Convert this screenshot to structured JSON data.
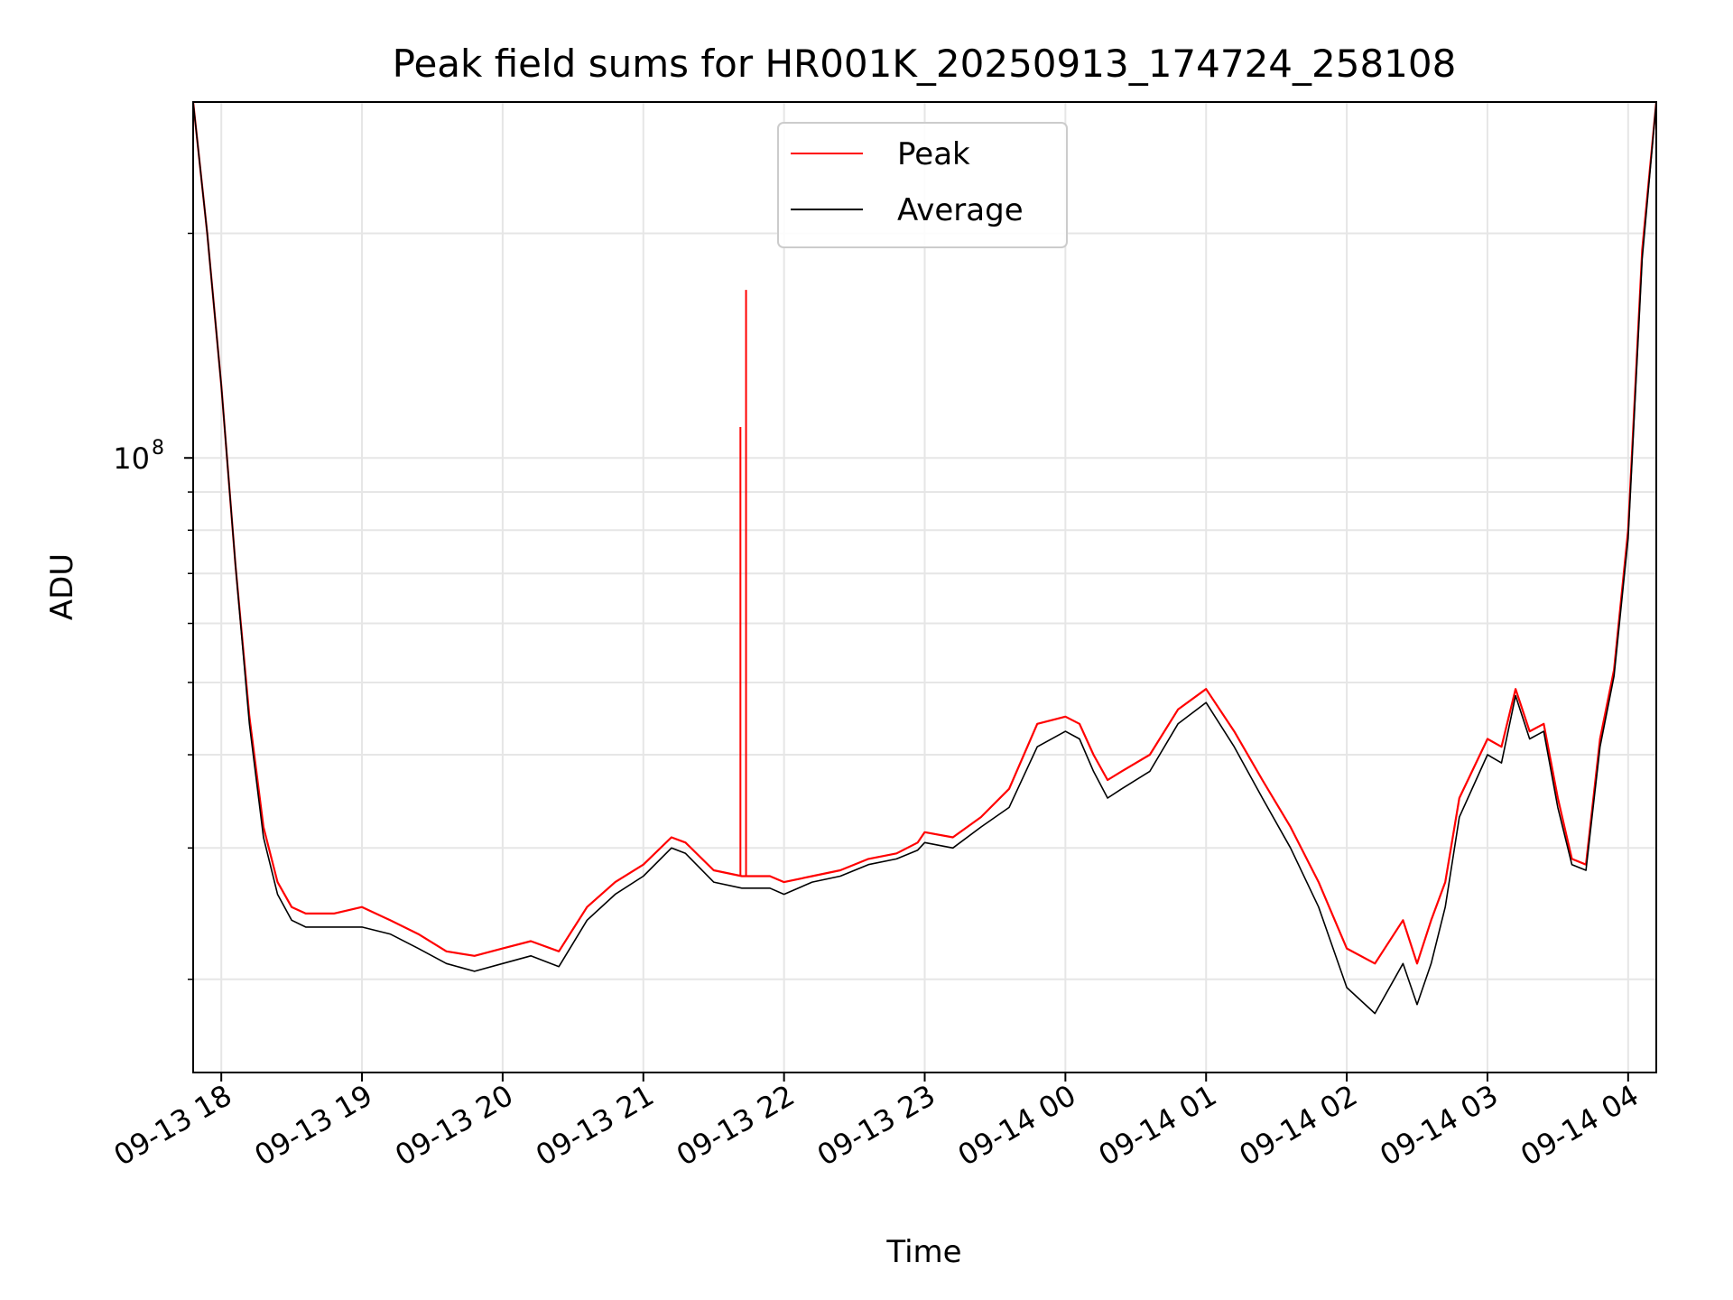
{
  "chart_data": {
    "type": "line",
    "title": "Peak field sums for HR001K_20250913_174724_258108",
    "xlabel": "Time",
    "ylabel": "ADU",
    "yscale": "log",
    "ylim": [
      15000000,
      300000000
    ],
    "xlim_hours": [
      17.8,
      28.2
    ],
    "x_unit": "hours since 2025-09-13 00:00",
    "grid": true,
    "legend_position": "top-center",
    "x_ticks": [
      {
        "value": 18,
        "label": "09-13 18"
      },
      {
        "value": 19,
        "label": "09-13 19"
      },
      {
        "value": 20,
        "label": "09-13 20"
      },
      {
        "value": 21,
        "label": "09-13 21"
      },
      {
        "value": 22,
        "label": "09-13 22"
      },
      {
        "value": 23,
        "label": "09-13 23"
      },
      {
        "value": 24,
        "label": "09-14 00"
      },
      {
        "value": 25,
        "label": "09-14 01"
      },
      {
        "value": 26,
        "label": "09-14 02"
      },
      {
        "value": 27,
        "label": "09-14 03"
      },
      {
        "value": 28,
        "label": "09-14 04"
      }
    ],
    "y_major_ticks": [
      {
        "value": 100000000,
        "label_base": "10",
        "label_exp": "8"
      }
    ],
    "y_minor_ticks": [
      20000000,
      30000000,
      40000000,
      50000000,
      60000000,
      70000000,
      80000000,
      90000000,
      200000000
    ],
    "series": [
      {
        "name": "Peak",
        "color": "#ff0000",
        "x": [
          17.8,
          17.9,
          18.0,
          18.1,
          18.2,
          18.3,
          18.4,
          18.5,
          18.6,
          18.8,
          19.0,
          19.2,
          19.4,
          19.6,
          19.8,
          20.0,
          20.2,
          20.4,
          20.6,
          20.8,
          21.0,
          21.2,
          21.3,
          21.5,
          21.7,
          21.9,
          22.0,
          22.2,
          22.4,
          22.6,
          22.8,
          22.95,
          23.0,
          23.2,
          23.4,
          23.6,
          23.8,
          24.0,
          24.1,
          24.2,
          24.3,
          24.4,
          24.6,
          24.8,
          25.0,
          25.2,
          25.4,
          25.6,
          25.8,
          26.0,
          26.2,
          26.4,
          26.5,
          26.6,
          26.7,
          26.8,
          27.0,
          27.1,
          27.2,
          27.3,
          27.4,
          27.5,
          27.6,
          27.7,
          27.8,
          27.9,
          28.0,
          28.1,
          28.2
        ],
        "y": [
          300000000,
          200000000,
          125000000,
          72000000,
          45000000,
          32000000,
          27000000,
          25000000,
          24500000,
          24500000,
          25000000,
          24000000,
          23000000,
          21800000,
          21500000,
          22000000,
          22500000,
          21800000,
          25000000,
          27000000,
          28500000,
          31000000,
          30500000,
          28000000,
          27500000,
          27500000,
          27000000,
          27500000,
          28000000,
          29000000,
          29500000,
          30500000,
          31500000,
          31000000,
          33000000,
          36000000,
          44000000,
          45000000,
          44000000,
          40000000,
          37000000,
          38000000,
          40000000,
          46000000,
          49000000,
          43000000,
          37000000,
          32000000,
          27000000,
          22000000,
          21000000,
          24000000,
          21000000,
          24000000,
          27000000,
          35000000,
          42000000,
          41000000,
          49000000,
          43000000,
          44000000,
          35000000,
          29000000,
          28500000,
          42000000,
          52000000,
          80000000,
          190000000,
          300000000
        ]
      },
      {
        "name": "Average",
        "color": "#000000",
        "x": [
          17.8,
          17.9,
          18.0,
          18.1,
          18.2,
          18.3,
          18.4,
          18.5,
          18.6,
          18.8,
          19.0,
          19.2,
          19.4,
          19.6,
          19.8,
          20.0,
          20.2,
          20.4,
          20.6,
          20.8,
          21.0,
          21.2,
          21.3,
          21.5,
          21.7,
          21.9,
          22.0,
          22.2,
          22.4,
          22.6,
          22.8,
          22.95,
          23.0,
          23.2,
          23.4,
          23.6,
          23.8,
          24.0,
          24.1,
          24.2,
          24.3,
          24.4,
          24.6,
          24.8,
          25.0,
          25.2,
          25.4,
          25.6,
          25.8,
          26.0,
          26.2,
          26.4,
          26.5,
          26.6,
          26.7,
          26.8,
          27.0,
          27.1,
          27.2,
          27.3,
          27.4,
          27.5,
          27.6,
          27.7,
          27.8,
          27.9,
          28.0,
          28.1,
          28.2
        ],
        "y": [
          300000000,
          200000000,
          125000000,
          72000000,
          44000000,
          31000000,
          26000000,
          24000000,
          23500000,
          23500000,
          23500000,
          23000000,
          22000000,
          21000000,
          20500000,
          21000000,
          21500000,
          20800000,
          24000000,
          26000000,
          27500000,
          30000000,
          29500000,
          27000000,
          26500000,
          26500000,
          26000000,
          27000000,
          27500000,
          28500000,
          29000000,
          29800000,
          30500000,
          30000000,
          32000000,
          34000000,
          41000000,
          43000000,
          42000000,
          38000000,
          35000000,
          36000000,
          38000000,
          44000000,
          47000000,
          41000000,
          35000000,
          30000000,
          25000000,
          19500000,
          18000000,
          21000000,
          18500000,
          21000000,
          25000000,
          33000000,
          40000000,
          39000000,
          48000000,
          42000000,
          43000000,
          34000000,
          28500000,
          28000000,
          41000000,
          51000000,
          78000000,
          185000000,
          300000000
        ]
      }
    ],
    "spikes": [
      {
        "x": 21.69,
        "value": 110000000
      },
      {
        "x": 21.73,
        "value": 168000000
      }
    ]
  }
}
